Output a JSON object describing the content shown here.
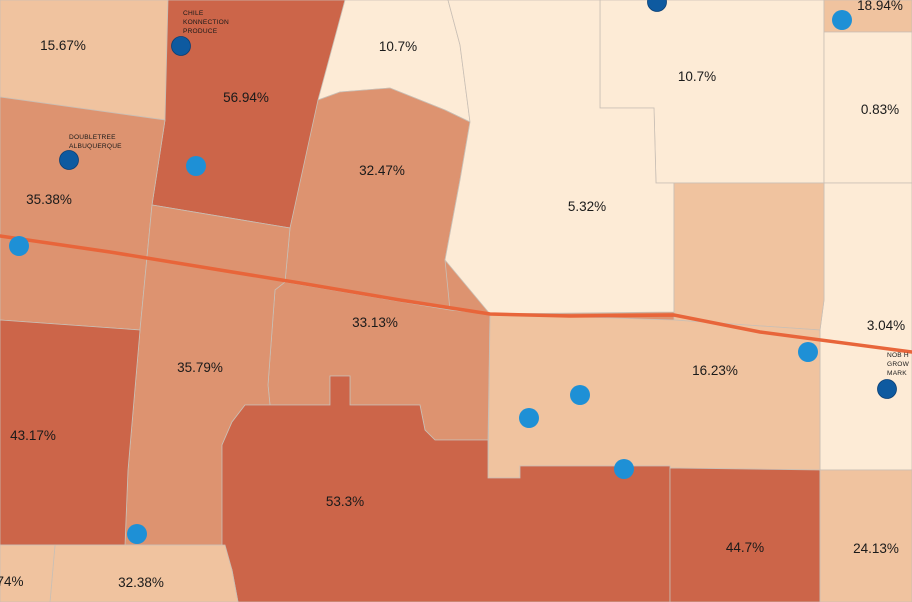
{
  "legend_colors": {
    "class_1": "#fdebd6",
    "class_2": "#f0c39f",
    "class_3": "#dd9370",
    "class_4": "#cc6549",
    "road": "#e8653a",
    "point_light": "#1e90d6",
    "point_dark": "#0e5aa0"
  },
  "tracts": [
    {
      "label": "15.67%"
    },
    {
      "label": "56.94%"
    },
    {
      "label": "10.7%"
    },
    {
      "label": "10.7%"
    },
    {
      "label": "18.94%"
    },
    {
      "label": "0.83%"
    },
    {
      "label": "35.38%"
    },
    {
      "label": "32.47%"
    },
    {
      "label": "5.32%"
    },
    {
      "label": "33.13%"
    },
    {
      "label": "3.04%"
    },
    {
      "label": "16.23%"
    },
    {
      "label": "35.79%"
    },
    {
      "label": "43.17%"
    },
    {
      "label": "53.3%"
    },
    {
      "label": "44.7%"
    },
    {
      "label": "24.13%"
    },
    {
      "label": "32.38%"
    },
    {
      "label": "74%"
    }
  ],
  "places": {
    "chile_konnection": {
      "line1": "CHILE",
      "line2": "KONNECTION",
      "line3": "PRODUCE"
    },
    "doubletree": {
      "line1": "DOUBLETREE",
      "line2": "ALBUQUERQUE"
    },
    "nob_hill": {
      "line1": "NOB H",
      "line2": "GROW",
      "line3": "MARK"
    }
  },
  "icons": {
    "point_light": "location-dot-icon",
    "point_dark": "landmark-dot-icon"
  }
}
